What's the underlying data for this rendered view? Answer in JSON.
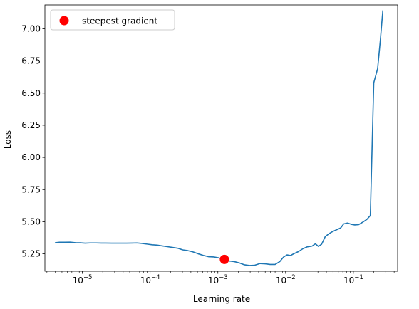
{
  "chart_data": {
    "type": "line",
    "title": "",
    "xlabel": "Learning rate",
    "ylabel": "Loss",
    "xscale": "log",
    "xlim": [
      2.8e-06,
      0.45
    ],
    "ylim": [
      5.115,
      7.185
    ],
    "grid": false,
    "legend_placement": "top-left",
    "x_major_ticks": [
      {
        "value": 1e-05,
        "base": "10",
        "exp": "−5"
      },
      {
        "value": 0.0001,
        "base": "10",
        "exp": "−4"
      },
      {
        "value": 0.001,
        "base": "10",
        "exp": "−3"
      },
      {
        "value": 0.01,
        "base": "10",
        "exp": "−2"
      },
      {
        "value": 0.1,
        "base": "10",
        "exp": "−1"
      }
    ],
    "y_ticks": [
      {
        "value": 5.25,
        "label": "5.25"
      },
      {
        "value": 5.5,
        "label": "5.50"
      },
      {
        "value": 5.75,
        "label": "5.75"
      },
      {
        "value": 6.0,
        "label": "6.00"
      },
      {
        "value": 6.25,
        "label": "6.25"
      },
      {
        "value": 6.5,
        "label": "6.50"
      },
      {
        "value": 6.75,
        "label": "6.75"
      },
      {
        "value": 7.0,
        "label": "7.00"
      }
    ],
    "series": [
      {
        "color": "#1f77b4",
        "points": [
          [
            4e-06,
            5.337
          ],
          [
            4.6e-06,
            5.34
          ],
          [
            5.5e-06,
            5.34
          ],
          [
            6.6e-06,
            5.341
          ],
          [
            7.9e-06,
            5.337
          ],
          [
            9.3e-06,
            5.336
          ],
          [
            1.1e-05,
            5.333
          ],
          [
            1.3e-05,
            5.335
          ],
          [
            1.6e-05,
            5.335
          ],
          [
            1.9e-05,
            5.334
          ],
          [
            2.2e-05,
            5.334
          ],
          [
            2.7e-05,
            5.333
          ],
          [
            3.2e-05,
            5.333
          ],
          [
            3.8e-05,
            5.333
          ],
          [
            4.5e-05,
            5.333
          ],
          [
            5.4e-05,
            5.334
          ],
          [
            6.4e-05,
            5.335
          ],
          [
            7.6e-05,
            5.331
          ],
          [
            9e-05,
            5.326
          ],
          [
            0.000107,
            5.321
          ],
          [
            0.000127,
            5.318
          ],
          [
            0.000151,
            5.312
          ],
          [
            0.00018,
            5.306
          ],
          [
            0.000214,
            5.3
          ],
          [
            0.000255,
            5.294
          ],
          [
            0.000304,
            5.281
          ],
          [
            0.000362,
            5.275
          ],
          [
            0.00043,
            5.265
          ],
          [
            0.00051,
            5.251
          ],
          [
            0.00061,
            5.238
          ],
          [
            0.00073,
            5.228
          ],
          [
            0.00087,
            5.226
          ],
          [
            0.00103,
            5.219
          ],
          [
            0.00123,
            5.207
          ],
          [
            0.00146,
            5.195
          ],
          [
            0.00174,
            5.19
          ],
          [
            0.00207,
            5.18
          ],
          [
            0.00247,
            5.165
          ],
          [
            0.00294,
            5.16
          ],
          [
            0.0035,
            5.162
          ],
          [
            0.0042,
            5.175
          ],
          [
            0.005,
            5.173
          ],
          [
            0.0059,
            5.168
          ],
          [
            0.007,
            5.168
          ],
          [
            0.0082,
            5.19
          ],
          [
            0.0093,
            5.225
          ],
          [
            0.0105,
            5.242
          ],
          [
            0.0118,
            5.237
          ],
          [
            0.0133,
            5.252
          ],
          [
            0.0155,
            5.268
          ],
          [
            0.018,
            5.29
          ],
          [
            0.021,
            5.305
          ],
          [
            0.0245,
            5.31
          ],
          [
            0.0275,
            5.328
          ],
          [
            0.0305,
            5.308
          ],
          [
            0.034,
            5.325
          ],
          [
            0.0385,
            5.385
          ],
          [
            0.044,
            5.408
          ],
          [
            0.05,
            5.425
          ],
          [
            0.058,
            5.44
          ],
          [
            0.065,
            5.452
          ],
          [
            0.072,
            5.483
          ],
          [
            0.082,
            5.49
          ],
          [
            0.093,
            5.48
          ],
          [
            0.105,
            5.475
          ],
          [
            0.12,
            5.478
          ],
          [
            0.138,
            5.497
          ],
          [
            0.158,
            5.518
          ],
          [
            0.178,
            5.548
          ],
          [
            0.2,
            6.58
          ],
          [
            0.228,
            6.69
          ],
          [
            0.25,
            6.91
          ],
          [
            0.272,
            7.14
          ]
        ]
      },
      {
        "name": "steepest gradient",
        "type": "scatter",
        "color": "#ff0000",
        "points": [
          [
            0.00125,
            5.207
          ]
        ]
      }
    ]
  }
}
